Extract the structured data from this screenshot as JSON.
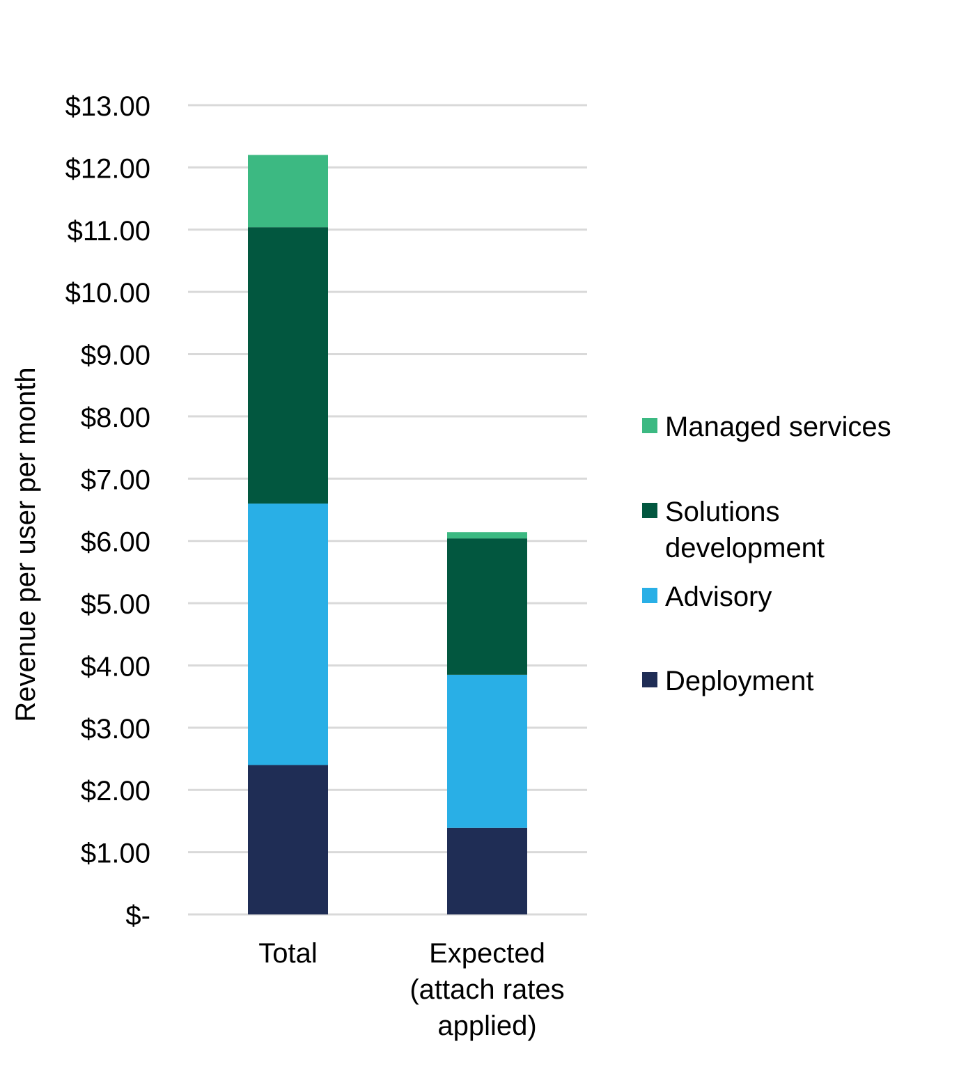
{
  "chart_data": {
    "type": "bar",
    "stacked": true,
    "title": "",
    "xlabel": "",
    "ylabel": "Revenue per user per month",
    "ylim": [
      0,
      13
    ],
    "yticks": [
      0,
      1,
      2,
      3,
      4,
      5,
      6,
      7,
      8,
      9,
      10,
      11,
      12,
      13
    ],
    "ytick_labels": [
      "$-",
      "$1.00",
      "$2.00",
      "$3.00",
      "$4.00",
      "$5.00",
      "$6.00",
      "$7.00",
      "$8.00",
      "$9.00",
      "$10.00",
      "$11.00",
      "$12.00",
      "$13.00"
    ],
    "grid": true,
    "legend_position": "right",
    "categories": [
      [
        "Total"
      ],
      [
        "Expected",
        "(attach rates",
        "applied)"
      ]
    ],
    "series": [
      {
        "name": "Deployment",
        "color": "#1f2d55",
        "values": [
          2.4,
          1.39
        ]
      },
      {
        "name": "Advisory",
        "color": "#29afe6",
        "values": [
          4.2,
          2.46
        ]
      },
      {
        "name": "Solutions development",
        "legend_lines": [
          "Solutions",
          "development"
        ],
        "color": "#02573f",
        "values": [
          4.44,
          2.19
        ]
      },
      {
        "name": "Managed services",
        "color": "#3cb982",
        "values": [
          1.16,
          0.1
        ]
      }
    ]
  }
}
